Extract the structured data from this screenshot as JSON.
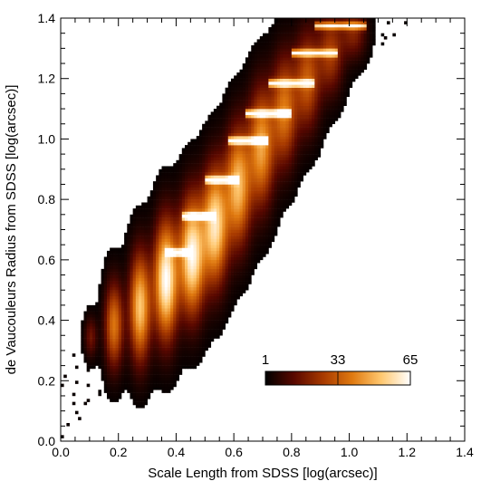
{
  "chart_data": {
    "type": "heatmap",
    "title": "",
    "xlabel": "Scale Length from SDSS [log(arcsec)]",
    "ylabel": "de Vaucouleurs Radius from SDSS [log(arcsec)]",
    "xlim": [
      0.0,
      1.4
    ],
    "ylim": [
      0.0,
      1.4
    ],
    "x_ticks": [
      "0.0",
      "0.2",
      "0.4",
      "0.6",
      "0.8",
      "1.0",
      "1.2",
      "1.4"
    ],
    "y_ticks": [
      "0.0",
      "0.2",
      "0.4",
      "0.6",
      "0.8",
      "1.0",
      "1.2",
      "1.4"
    ],
    "grid": false,
    "colorbar": {
      "labels": [
        "1",
        "33",
        "65"
      ],
      "min": 1,
      "max": 65,
      "colors": [
        "#000000",
        "#5a0800",
        "#a83a00",
        "#e07a10",
        "#ffc870",
        "#ffffff"
      ],
      "placement": "lower-right"
    },
    "clusters": [
      {
        "x": 0.1,
        "y": 0.34,
        "sx": 0.015,
        "sy": 0.045,
        "density": 16
      },
      {
        "x": 0.18,
        "y": 0.38,
        "sx": 0.022,
        "sy": 0.095,
        "density": 38
      },
      {
        "x": 0.27,
        "y": 0.44,
        "sx": 0.025,
        "sy": 0.12,
        "density": 52
      },
      {
        "x": 0.36,
        "y": 0.53,
        "sx": 0.028,
        "sy": 0.13,
        "density": 65
      },
      {
        "x": 0.45,
        "y": 0.61,
        "sx": 0.03,
        "sy": 0.13,
        "density": 63
      },
      {
        "x": 0.53,
        "y": 0.71,
        "sx": 0.03,
        "sy": 0.13,
        "density": 58
      },
      {
        "x": 0.61,
        "y": 0.84,
        "sx": 0.03,
        "sy": 0.13,
        "density": 50
      },
      {
        "x": 0.69,
        "y": 0.97,
        "sx": 0.03,
        "sy": 0.13,
        "density": 45
      },
      {
        "x": 0.77,
        "y": 1.09,
        "sx": 0.03,
        "sy": 0.12,
        "density": 38
      },
      {
        "x": 0.85,
        "y": 1.19,
        "sx": 0.03,
        "sy": 0.11,
        "density": 32
      },
      {
        "x": 0.93,
        "y": 1.28,
        "sx": 0.03,
        "sy": 0.09,
        "density": 26
      },
      {
        "x": 1.01,
        "y": 1.35,
        "sx": 0.03,
        "sy": 0.06,
        "density": 20
      }
    ],
    "stripes": [
      {
        "x0": 0.36,
        "x1": 0.46,
        "y": 0.62,
        "density": 55
      },
      {
        "x0": 0.42,
        "x1": 0.54,
        "y": 0.74,
        "density": 60
      },
      {
        "x0": 0.5,
        "x1": 0.62,
        "y": 0.86,
        "density": 62
      },
      {
        "x0": 0.58,
        "x1": 0.72,
        "y": 0.99,
        "density": 64
      },
      {
        "x0": 0.64,
        "x1": 0.8,
        "y": 1.08,
        "density": 65
      },
      {
        "x0": 0.72,
        "x1": 0.88,
        "y": 1.18,
        "density": 62
      },
      {
        "x0": 0.8,
        "x1": 0.96,
        "y": 1.28,
        "density": 55
      },
      {
        "x0": 0.88,
        "x1": 1.06,
        "y": 1.37,
        "density": 48
      }
    ]
  }
}
